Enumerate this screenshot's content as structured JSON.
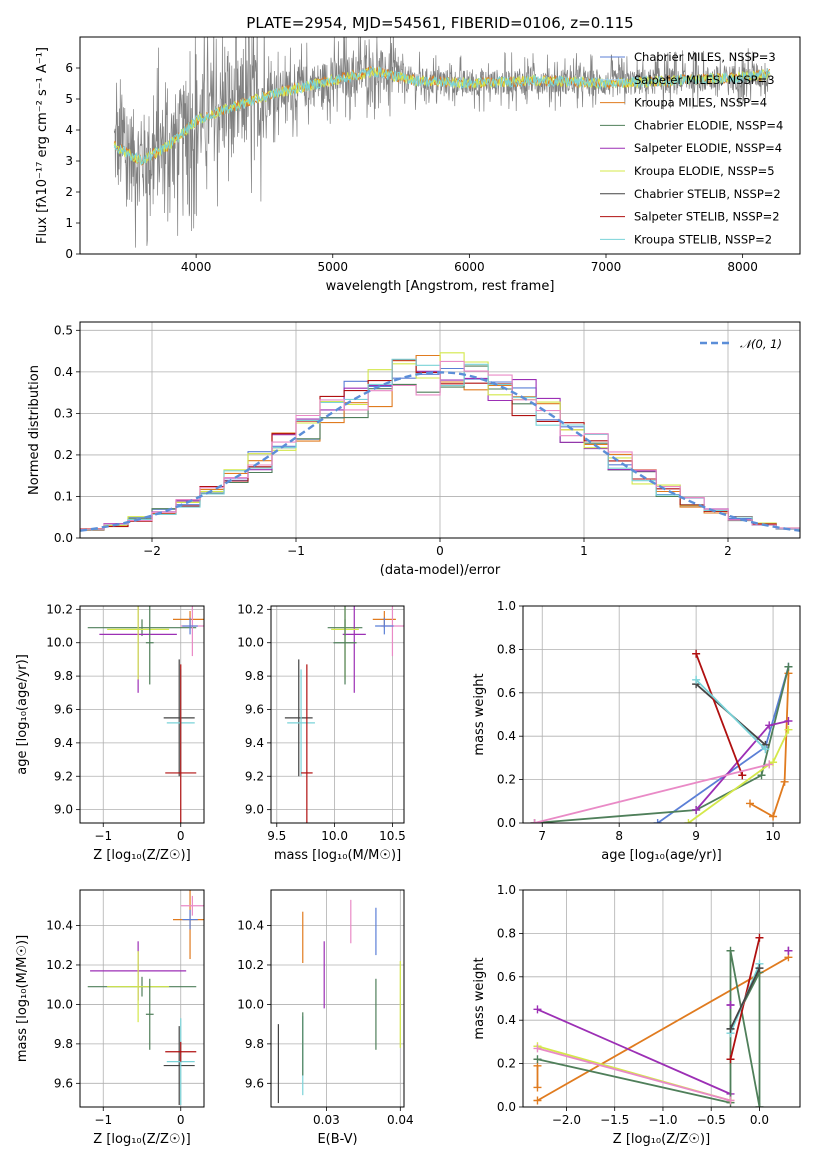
{
  "figure": {
    "title": "PLATE=2954, MJD=54561, FIBERID=0106, z=0.115"
  },
  "colors": {
    "Chabrier MILES": "#5b7fd6",
    "Salpeter MILES": "#b0d3f0",
    "Kroupa MILES": "#e07b1f",
    "Chabrier ELODIE": "#4f7f5a",
    "Salpeter ELODIE": "#9c2fb5",
    "Kroupa ELODIE": "#d4e84a",
    "Chabrier STELIB": "#444444",
    "Salpeter STELIB": "#b01010",
    "Kroupa STELIB": "#7ad3d8",
    "gray": "#808080",
    "pink": "#e98ac6",
    "normal": "#5b8ed8"
  },
  "chart_data": [
    {
      "id": "spectrum",
      "type": "line",
      "xlabel": "wavelength [Angstrom, rest frame]",
      "ylabel": "Flux [fλ10⁻¹⁷ erg cm⁻² s⁻¹ A⁻¹]",
      "xlim": [
        3150,
        8420
      ],
      "ylim": [
        0,
        7
      ],
      "xticks": [
        4000,
        5000,
        6000,
        7000,
        8000
      ],
      "yticks": [
        0,
        1,
        2,
        3,
        4,
        5,
        6
      ],
      "grid": false,
      "legend_position": "right",
      "legend": [
        "Chabrier MILES, N_SSP=3",
        "Salpeter MILES, N_SSP=3",
        "Kroupa MILES, N_SSP=4",
        "Chabrier ELODIE, N_SSP=4",
        "Salpeter ELODIE, N_SSP=4",
        "Kroupa ELODIE, N_SSP=5",
        "Chabrier STELIB, N_SSP=2",
        "Salpeter STELIB, N_SSP=2",
        "Kroupa STELIB, N_SSP=2"
      ],
      "data_range": [
        3400,
        8200
      ],
      "continuum": [
        [
          3400,
          3.5
        ],
        [
          3600,
          3.0
        ],
        [
          3800,
          3.5
        ],
        [
          4000,
          4.3
        ],
        [
          4300,
          4.8
        ],
        [
          4600,
          5.2
        ],
        [
          5000,
          5.6
        ],
        [
          5300,
          5.9
        ],
        [
          5600,
          5.6
        ],
        [
          6000,
          5.5
        ],
        [
          6500,
          5.6
        ],
        [
          7000,
          5.5
        ],
        [
          7500,
          5.6
        ],
        [
          8000,
          5.7
        ],
        [
          8200,
          5.8
        ]
      ]
    },
    {
      "id": "residuals",
      "type": "histogram",
      "xlabel": "(data-model)/error",
      "ylabel": "Normed distribution",
      "xlim": [
        -2.5,
        2.5
      ],
      "ylim": [
        0,
        0.52
      ],
      "xticks": [
        -2,
        -1,
        0,
        1,
        2
      ],
      "yticks": [
        0.0,
        0.1,
        0.2,
        0.3,
        0.4,
        0.5
      ],
      "grid": true,
      "legend_position": "top-right",
      "legend": [
        "𝒩(0, 1)"
      ],
      "bin_width": 0.1667
    },
    {
      "id": "age_vs_Z",
      "type": "errorbar",
      "xlabel": "Z [log₁₀(Z/Z☉)]",
      "ylabel": "age  [log₁₀(age/yr)]",
      "xlim": [
        -1.3,
        0.3
      ],
      "ylim": [
        8.92,
        10.22
      ],
      "xticks": [
        -1,
        0
      ],
      "yticks": [
        9.0,
        9.2,
        9.4,
        9.6,
        9.8,
        10.0,
        10.2
      ],
      "grid": true,
      "points": [
        {
          "series": "Chabrier ELODIE",
          "x": -0.5,
          "xerr": 0.7,
          "y": 10.09,
          "yerr": 0.05
        },
        {
          "series": "Salpeter ELODIE",
          "x": -0.55,
          "xerr": 0.5,
          "y": 10.05,
          "yerr": 0.35
        },
        {
          "series": "Kroupa ELODIE",
          "x": -0.55,
          "xerr": 0.4,
          "y": 10.08,
          "yerr": 0.3
        },
        {
          "series": "Chabrier ELODIE",
          "x": -0.4,
          "xerr": 0.05,
          "y": 10.0,
          "yerr": 0.25
        },
        {
          "series": "Kroupa MILES",
          "x": 0.12,
          "xerr": 0.22,
          "y": 10.14,
          "yerr": 0.05
        },
        {
          "series": "pink",
          "x": 0.15,
          "xerr": 0.15,
          "y": 10.1,
          "yerr": 0.18
        },
        {
          "series": "Chabrier MILES",
          "x": 0.12,
          "xerr": 0.1,
          "y": 10.1,
          "yerr": 0.05
        },
        {
          "series": "Chabrier STELIB",
          "x": -0.02,
          "xerr": 0.2,
          "y": 9.55,
          "yerr": 0.35
        },
        {
          "series": "Kroupa STELIB",
          "x": 0.0,
          "xerr": 0.18,
          "y": 9.52,
          "yerr": 0.32
        },
        {
          "series": "Salpeter STELIB",
          "x": 0.0,
          "xerr": 0.2,
          "y": 9.22,
          "yerr": 0.65
        }
      ]
    },
    {
      "id": "age_vs_mass",
      "type": "errorbar",
      "xlabel": "mass [log₁₀(M/M☉)]",
      "ylabel": "",
      "xlim": [
        9.45,
        10.6
      ],
      "ylim": [
        8.92,
        10.22
      ],
      "xticks": [
        9.5,
        10.0,
        10.5
      ],
      "yticks": [
        9.0,
        9.2,
        9.4,
        9.6,
        9.8,
        10.0,
        10.2
      ],
      "grid": true,
      "points": [
        {
          "series": "Chabrier ELODIE",
          "x": 10.09,
          "xerr": 0.15,
          "y": 10.09,
          "yerr": 0.05
        },
        {
          "series": "Salpeter ELODIE",
          "x": 10.17,
          "xerr": 0.1,
          "y": 10.05,
          "yerr": 0.35
        },
        {
          "series": "Kroupa ELODIE",
          "x": 10.09,
          "xerr": 0.12,
          "y": 10.08,
          "yerr": 0.3
        },
        {
          "series": "Chabrier ELODIE",
          "x": 10.09,
          "xerr": 0.1,
          "y": 10.0,
          "yerr": 0.25
        },
        {
          "series": "Kroupa MILES",
          "x": 10.43,
          "xerr": 0.1,
          "y": 10.14,
          "yerr": 0.05
        },
        {
          "series": "pink",
          "x": 10.5,
          "xerr": 0.1,
          "y": 10.1,
          "yerr": 0.18
        },
        {
          "series": "Chabrier MILES",
          "x": 10.43,
          "xerr": 0.08,
          "y": 10.1,
          "yerr": 0.05
        },
        {
          "series": "Chabrier STELIB",
          "x": 9.69,
          "xerr": 0.12,
          "y": 9.55,
          "yerr": 0.35
        },
        {
          "series": "Kroupa STELIB",
          "x": 9.71,
          "xerr": 0.12,
          "y": 9.52,
          "yerr": 0.32
        },
        {
          "series": "Salpeter STELIB",
          "x": 9.76,
          "xerr": 0.05,
          "y": 9.22,
          "yerr": 0.65
        }
      ]
    },
    {
      "id": "weight_vs_age",
      "type": "line",
      "xlabel": "age  [log₁₀(age/yr)]",
      "ylabel": "mass weight",
      "xlim": [
        6.75,
        10.35
      ],
      "ylim": [
        0,
        1.0
      ],
      "xticks": [
        7,
        8,
        9,
        10
      ],
      "yticks": [
        0.0,
        0.2,
        0.4,
        0.6,
        0.8,
        1.0
      ],
      "grid": true,
      "series": [
        {
          "series": "Chabrier MILES",
          "x": [
            8.5,
            9.9,
            10.2
          ],
          "y": [
            0.0,
            0.35,
            0.72
          ]
        },
        {
          "series": "Kroupa MILES",
          "x": [
            9.7,
            10.0,
            10.15,
            10.2
          ],
          "y": [
            0.09,
            0.03,
            0.19,
            0.69
          ]
        },
        {
          "series": "Chabrier ELODIE",
          "x": [
            6.9,
            9.0,
            9.85,
            10.2
          ],
          "y": [
            0.0,
            0.06,
            0.22,
            0.72
          ]
        },
        {
          "series": "Salpeter ELODIE",
          "x": [
            9.0,
            9.95,
            10.2
          ],
          "y": [
            0.06,
            0.45,
            0.47
          ]
        },
        {
          "series": "Kroupa ELODIE",
          "x": [
            8.9,
            9.95,
            10.0,
            10.2
          ],
          "y": [
            0.0,
            0.27,
            0.28,
            0.43
          ]
        },
        {
          "series": "Chabrier STELIB",
          "x": [
            9.0,
            9.9
          ],
          "y": [
            0.64,
            0.36
          ]
        },
        {
          "series": "Salpeter STELIB",
          "x": [
            9.0,
            9.6
          ],
          "y": [
            0.78,
            0.22
          ]
        },
        {
          "series": "Kroupa STELIB",
          "x": [
            9.0,
            9.9
          ],
          "y": [
            0.66,
            0.34
          ]
        },
        {
          "series": "pink",
          "x": [
            6.9,
            9.95
          ],
          "y": [
            0.0,
            0.27
          ]
        }
      ]
    },
    {
      "id": "mass_vs_Z",
      "type": "errorbar",
      "xlabel": "Z [log₁₀(Z/Z☉)]",
      "ylabel": "mass [log₁₀(M/M☉)]",
      "xlim": [
        -1.3,
        0.3
      ],
      "ylim": [
        9.48,
        10.58
      ],
      "xticks": [
        -1,
        0
      ],
      "yticks": [
        9.6,
        9.8,
        10.0,
        10.2,
        10.4
      ],
      "grid": true,
      "points": [
        {
          "series": "Chabrier ELODIE",
          "x": -0.5,
          "xerr": 0.7,
          "y": 10.09,
          "yerr": 0.05
        },
        {
          "series": "Salpeter ELODIE",
          "x": -0.55,
          "xerr": 0.62,
          "y": 10.17,
          "yerr": 0.15
        },
        {
          "series": "Kroupa ELODIE",
          "x": -0.55,
          "xerr": 0.4,
          "y": 10.09,
          "yerr": 0.18
        },
        {
          "series": "Chabrier ELODIE",
          "x": -0.4,
          "xerr": 0.05,
          "y": 9.95,
          "yerr": 0.18
        },
        {
          "series": "Kroupa MILES",
          "x": 0.12,
          "xerr": 0.22,
          "y": 10.43,
          "yerr": 0.2
        },
        {
          "series": "pink",
          "x": 0.15,
          "xerr": 0.15,
          "y": 10.5,
          "yerr": 0.05
        },
        {
          "series": "Chabrier MILES",
          "x": 0.12,
          "xerr": 0.1,
          "y": 10.43,
          "yerr": 0.05
        },
        {
          "series": "Chabrier STELIB",
          "x": -0.02,
          "xerr": 0.2,
          "y": 9.69,
          "yerr": 0.2
        },
        {
          "series": "Kroupa STELIB",
          "x": 0.0,
          "xerr": 0.18,
          "y": 9.71,
          "yerr": 0.22
        },
        {
          "series": "Salpeter STELIB",
          "x": 0.0,
          "xerr": 0.2,
          "y": 9.76,
          "yerr": 0.05
        }
      ]
    },
    {
      "id": "mass_vs_ebv",
      "type": "errorbar",
      "xlabel": "E(B-V)",
      "ylabel": "",
      "xlim": [
        0.0225,
        0.0405
      ],
      "ylim": [
        9.48,
        10.58
      ],
      "xticks": [
        0.03,
        0.04
      ],
      "yticks": [
        9.6,
        9.8,
        10.0,
        10.2,
        10.4
      ],
      "grid": true,
      "points": [
        {
          "series": "Chabrier STELIB",
          "x": 0.0235,
          "xerr": 0,
          "y": 9.7,
          "yerr": 0.2
        },
        {
          "series": "Kroupa MILES",
          "x": 0.0268,
          "xerr": 0,
          "y": 10.34,
          "yerr": 0.13
        },
        {
          "series": "Kroupa STELIB",
          "x": 0.0268,
          "xerr": 0,
          "y": 9.74,
          "yerr": 0.2
        },
        {
          "series": "Chabrier ELODIE",
          "x": 0.0268,
          "xerr": 0,
          "y": 9.8,
          "yerr": 0.16
        },
        {
          "series": "Salpeter ELODIE",
          "x": 0.0297,
          "xerr": 0,
          "y": 10.15,
          "yerr": 0.17
        },
        {
          "series": "pink",
          "x": 0.0333,
          "xerr": 0,
          "y": 10.42,
          "yerr": 0.11
        },
        {
          "series": "Chabrier MILES",
          "x": 0.0367,
          "xerr": 0,
          "y": 10.37,
          "yerr": 0.12
        },
        {
          "series": "Chabrier ELODIE",
          "x": 0.0367,
          "xerr": 0,
          "y": 9.95,
          "yerr": 0.18
        },
        {
          "series": "Kroupa ELODIE",
          "x": 0.04,
          "xerr": 0,
          "y": 10.0,
          "yerr": 0.22
        }
      ]
    },
    {
      "id": "weight_vs_Z",
      "type": "line",
      "xlabel": "Z [log₁₀(Z/Z☉)]",
      "ylabel": "mass weight",
      "xlim": [
        -2.45,
        0.42
      ],
      "ylim": [
        0,
        1.0
      ],
      "xticks": [
        -2.0,
        -1.5,
        -1.0,
        -0.5,
        0.0
      ],
      "xtick_labels": [
        "−2.0",
        "−1.5",
        "−1.0",
        "−0.5",
        "0.0"
      ],
      "yticks": [
        0.0,
        0.2,
        0.4,
        0.6,
        0.8,
        1.0
      ],
      "grid": true,
      "series": [
        {
          "series": "Kroupa MILES",
          "x": [
            -2.3,
            0.3
          ],
          "y": [
            0.03,
            0.69
          ]
        },
        {
          "series": "Kroupa MILES",
          "x": [
            -2.3,
            -2.3
          ],
          "y": [
            0.09,
            0.19
          ]
        },
        {
          "series": "Salpeter ELODIE",
          "x": [
            -2.3,
            -0.3
          ],
          "y": [
            0.45,
            0.06
          ]
        },
        {
          "series": "Chabrier ELODIE",
          "x": [
            -2.3,
            -0.3,
            -0.3,
            0.0,
            0.0,
            -0.3
          ],
          "y": [
            0.22,
            0.02,
            0.72,
            0.0,
            0.62,
            0.36
          ]
        },
        {
          "series": "Kroupa ELODIE",
          "x": [
            -2.3,
            -0.3
          ],
          "y": [
            0.28,
            0.03
          ]
        },
        {
          "series": "pink",
          "x": [
            -2.3,
            -0.3
          ],
          "y": [
            0.27,
            0.03
          ]
        },
        {
          "series": "Salpeter STELIB",
          "x": [
            -0.3,
            0.0
          ],
          "y": [
            0.22,
            0.78
          ]
        },
        {
          "series": "Kroupa STELIB",
          "x": [
            -0.3,
            0.0
          ],
          "y": [
            0.34,
            0.66
          ]
        },
        {
          "series": "Chabrier STELIB",
          "x": [
            -0.3,
            0.0
          ],
          "y": [
            0.36,
            0.64
          ]
        },
        {
          "series": "Salpeter ELODIE",
          "x": [
            0.3,
            0.3
          ],
          "y": [
            0.72,
            0.72
          ]
        },
        {
          "series": "Salpeter ELODIE",
          "x": [
            -0.3,
            -0.3
          ],
          "y": [
            0.47,
            0.47
          ]
        }
      ]
    }
  ]
}
